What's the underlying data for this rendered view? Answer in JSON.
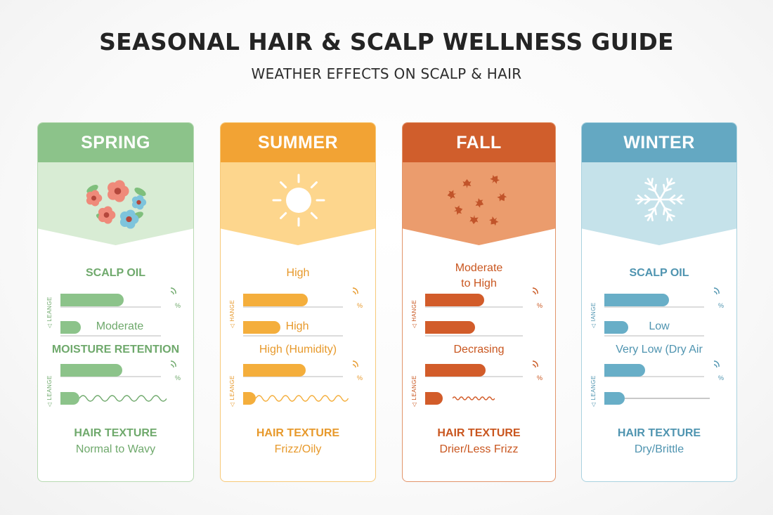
{
  "title": "SEASONAL HAIR & SCALP WELLNESS GUIDE",
  "subtitle": "WEATHER EFFECTS ON SCALP & HAIR",
  "seasons": [
    {
      "name": "SPRING",
      "colors": {
        "head": "#8cc38a",
        "band": "#d8ecd4",
        "border": "#b7dab2",
        "bar": "#8cc38a",
        "text": "#6fa96c"
      },
      "illustration": "flowers-icon",
      "label1": "SCALP OIL",
      "axis_tag1": "◁ LEANGE",
      "pct1": "%",
      "level1": "Moderate",
      "label2": "MOISTURE RETENTION",
      "axis_tag2": "◁ LEANGE",
      "pct2": "%",
      "texture_label": "HAIR TEXTURE",
      "texture_value": "Normal to Wavy",
      "bar_fill": [
        0.68,
        0.22,
        0.66,
        0.2
      ]
    },
    {
      "name": "SUMMER",
      "colors": {
        "head": "#f2a334",
        "band": "#fdd68d",
        "border": "#f7c978",
        "bar": "#f4ae3c",
        "text": "#e7992b"
      },
      "illustration": "sun-icon",
      "label1": "High",
      "axis_tag1": "◁ HANGE",
      "pct1": "%",
      "level1": "High",
      "label2": "High (Humidity)",
      "axis_tag2": "◁ LEANGE",
      "pct2": "%",
      "texture_label": "HAIR TEXTURE",
      "texture_value": "Frizz/Oily",
      "bar_fill": [
        0.7,
        0.4,
        0.68,
        0.14
      ]
    },
    {
      "name": "FALL",
      "colors": {
        "head": "#d05e2c",
        "band": "#eb9c6d",
        "border": "#e2946a",
        "bar": "#d25c2a",
        "text": "#c9561f"
      },
      "illustration": "leaves-icon",
      "label1": "Moderate\nto High",
      "axis_tag1": "◁ HANGE",
      "pct1": "%",
      "level1": "",
      "label2": "Decrasing",
      "axis_tag2": "◁ LEANGE",
      "pct2": "%",
      "texture_label": "HAIR TEXTURE",
      "texture_value": "Drier/Less Frizz",
      "bar_fill": [
        0.66,
        0.56,
        0.68,
        0.2
      ]
    },
    {
      "name": "WINTER",
      "colors": {
        "head": "#64a8c2",
        "band": "#c5e2ea",
        "border": "#a9d2df",
        "bar": "#68aec7",
        "text": "#4f94b0"
      },
      "illustration": "snowflake-icon",
      "label1": "SCALP OIL",
      "axis_tag1": "◁ IANGE",
      "pct1": "%",
      "level1": "Low",
      "label2": "Very Low (Dry Air",
      "axis_tag2": "◁ LEANGE",
      "pct2": "%",
      "texture_label": "HAIR TEXTURE",
      "texture_value": "Dry/Brittle",
      "bar_fill": [
        0.7,
        0.26,
        0.44,
        0.22
      ]
    }
  ]
}
